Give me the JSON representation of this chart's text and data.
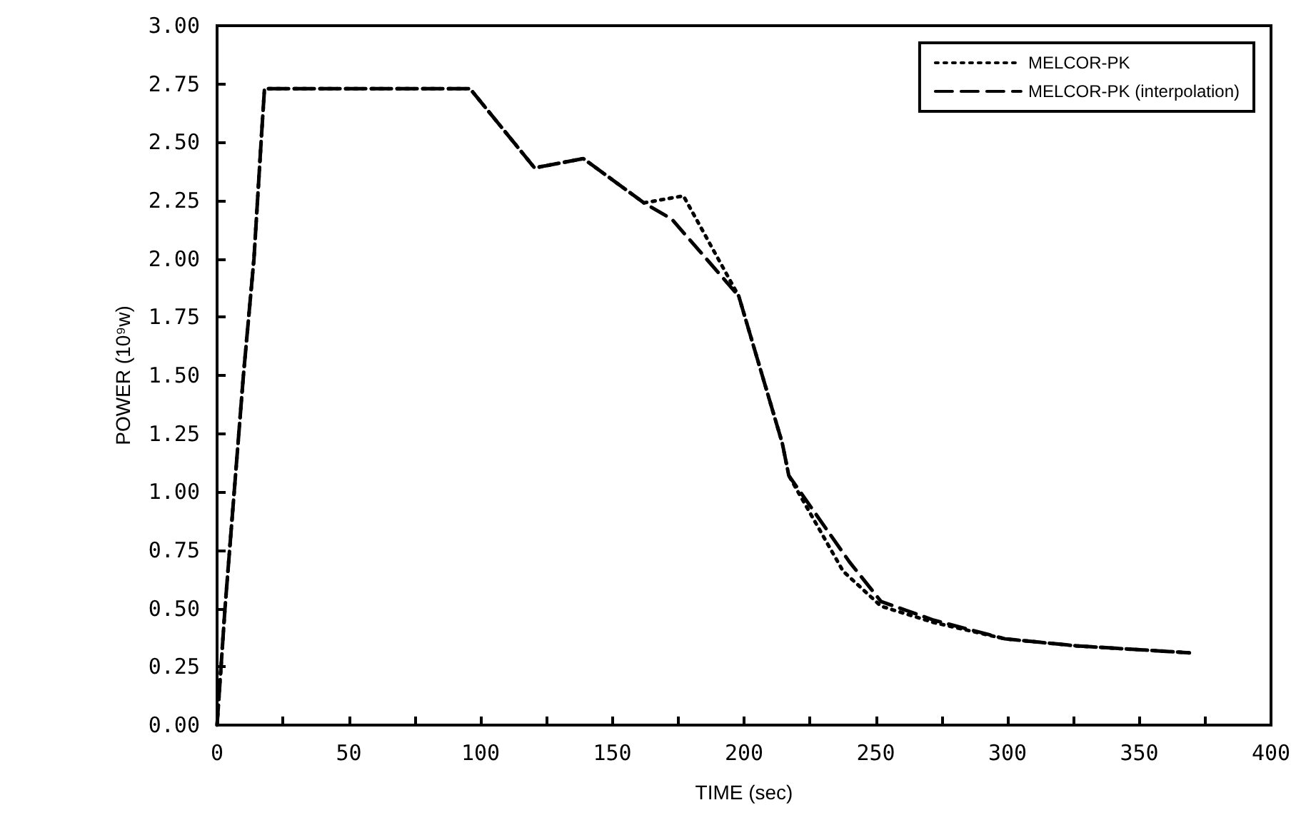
{
  "chart_data": {
    "type": "line",
    "xlabel": "TIME (sec)",
    "ylabel": "POWER (10⁹w)",
    "xlim": [
      0,
      400
    ],
    "ylim": [
      0,
      3
    ],
    "xticks": [
      0,
      {
        "value": 25,
        "label": null
      },
      50,
      {
        "value": 75,
        "label": null
      },
      100,
      {
        "value": 125,
        "label": null
      },
      150,
      {
        "value": 175,
        "label": null
      },
      200,
      {
        "value": 225,
        "label": null
      },
      250,
      {
        "value": 275,
        "label": null
      },
      300,
      {
        "value": 325,
        "label": null
      },
      350,
      {
        "value": 375,
        "label": null
      },
      400
    ],
    "yticks": [
      {
        "value": 0,
        "label": "0.00"
      },
      {
        "value": 0.25,
        "label": "0.25"
      },
      {
        "value": 0.5,
        "label": "0.50"
      },
      {
        "value": 0.75,
        "label": "0.75"
      },
      {
        "value": 1,
        "label": "1.00"
      },
      {
        "value": 1.25,
        "label": "1.25"
      },
      {
        "value": 1.5,
        "label": "1.50"
      },
      {
        "value": 1.75,
        "label": "1.75"
      },
      {
        "value": 2,
        "label": "2.00"
      },
      {
        "value": 2.25,
        "label": "2.25"
      },
      {
        "value": 2.5,
        "label": "2.50"
      },
      {
        "value": 2.75,
        "label": "2.75"
      },
      {
        "value": 3,
        "label": "3.00"
      }
    ],
    "grid": false,
    "legend": "top right",
    "series": [
      {
        "name": "MELCOR-PK",
        "color": "#000000",
        "line_style": "dotted",
        "x": [
          0,
          3,
          6.5,
          10,
          14,
          16.7,
          18,
          60,
          96,
          120.5,
          139,
          162,
          177,
          198,
          214.5,
          217,
          237.6,
          252,
          272,
          299,
          326,
          369
        ],
        "values": [
          0,
          0.5,
          1.0,
          1.5,
          2.0,
          2.5,
          2.73,
          2.73,
          2.73,
          2.39,
          2.43,
          2.24,
          2.27,
          1.84,
          1.21,
          1.07,
          0.66,
          0.51,
          0.44,
          0.37,
          0.34,
          0.31
        ]
      },
      {
        "name": "MELCOR-PK (interpolation)",
        "color": "#000000",
        "line_style": "dashed",
        "x": [
          0,
          3,
          6.5,
          10,
          14,
          16.7,
          18,
          60,
          96,
          120.5,
          139,
          162,
          172.6,
          198,
          214.5,
          217,
          240,
          252,
          272,
          299,
          326,
          369
        ],
        "values": [
          0,
          0.5,
          1.0,
          1.5,
          2.0,
          2.5,
          2.73,
          2.73,
          2.73,
          2.39,
          2.43,
          2.24,
          2.17,
          1.84,
          1.21,
          1.07,
          0.7,
          0.53,
          0.45,
          0.37,
          0.34,
          0.31
        ]
      }
    ]
  }
}
